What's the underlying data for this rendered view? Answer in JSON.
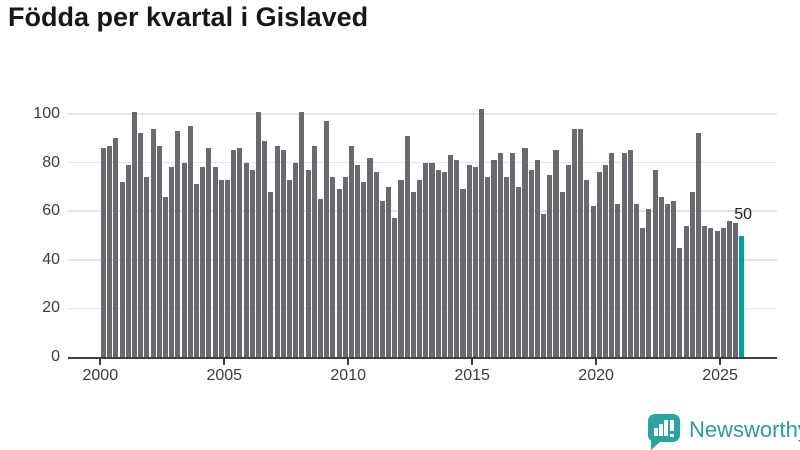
{
  "title": "Födda per kvartal i Gislaved",
  "chart_data": {
    "type": "bar",
    "title": "Födda per kvartal i Gislaved",
    "xlabel": "",
    "ylabel": "",
    "unit": "födda per kvartal",
    "x_start_quarter": "2000 Q1",
    "x_end_quarter": "2025 Q4",
    "x_ticks": [
      2000,
      2005,
      2010,
      2015,
      2020,
      2025
    ],
    "x_tick_labels": [
      "2000",
      "2005",
      "2010",
      "2015",
      "2020",
      "2025"
    ],
    "y_ticks": [
      0,
      20,
      40,
      60,
      80,
      100
    ],
    "ylim": [
      0,
      105
    ],
    "grid": true,
    "values": [
      86,
      87,
      90,
      72,
      79,
      101,
      92,
      74,
      94,
      87,
      66,
      78,
      93,
      80,
      95,
      71,
      78,
      86,
      78,
      73,
      73,
      85,
      86,
      80,
      77,
      101,
      89,
      68,
      87,
      85,
      73,
      80,
      101,
      77,
      87,
      65,
      97,
      74,
      69,
      74,
      87,
      79,
      72,
      82,
      76,
      64,
      70,
      57,
      73,
      91,
      68,
      73,
      80,
      80,
      77,
      76,
      83,
      81,
      69,
      79,
      78,
      102,
      74,
      81,
      84,
      74,
      84,
      70,
      86,
      77,
      81,
      59,
      75,
      85,
      68,
      79,
      94,
      94,
      73,
      62,
      76,
      79,
      84,
      63,
      84,
      85,
      63,
      53,
      61,
      77,
      66,
      63,
      64,
      45,
      54,
      68,
      92,
      54,
      53,
      52,
      53,
      56,
      55,
      50
    ],
    "highlight_last_bar": true,
    "last_bar_label": "50",
    "bar_color": "#69696f",
    "highlight_color": "#009e9e",
    "grid_color": "#e5e5e5",
    "axis_color": "#3f3f3f",
    "text_color": "#3b3b3b"
  },
  "annotation": {
    "last_value_label": "50"
  },
  "branding": {
    "logo_text": "Newsworthy",
    "logo_color": "#2f98a2"
  }
}
